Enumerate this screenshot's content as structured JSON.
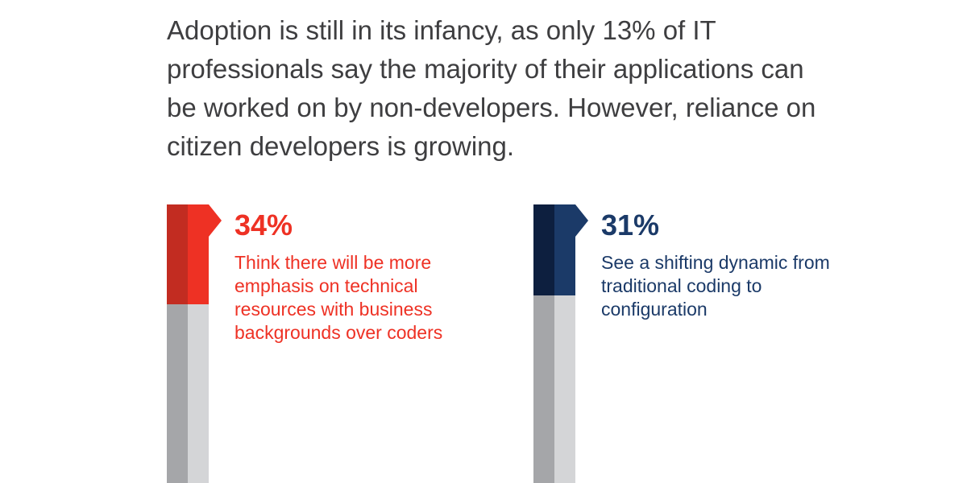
{
  "headline": "Adoption is still in its infancy, as only 13% of IT professionals say the majority of their applications can be worked on by non-developers. However, reliance on citizen developers is growing.",
  "chart_data": {
    "type": "bar",
    "categories": [
      "Think there will be more emphasis on technical resources with business backgrounds over coders",
      "See a shifting dynamic from traditional coding to configuration"
    ],
    "values": [
      34,
      31
    ],
    "value_labels": [
      "34%",
      "31%"
    ],
    "unit": "%",
    "ylim": [
      0,
      100
    ]
  },
  "stats": [
    {
      "percent": "34%",
      "value": 34,
      "description": "Think there will be more emphasis on technical resources with business backgrounds over coders",
      "colors": {
        "dark": "#c22c21",
        "main": "#ee3124",
        "text": "#ee3124"
      }
    },
    {
      "percent": "31%",
      "value": 31,
      "description": "See a shifting dynamic from traditional coding to configuration",
      "colors": {
        "dark": "#0d1f3f",
        "main": "#1b3a68",
        "text": "#1b3a68"
      }
    }
  ],
  "track_colors": {
    "dark": "#a5a6a9",
    "light": "#d4d5d7"
  }
}
